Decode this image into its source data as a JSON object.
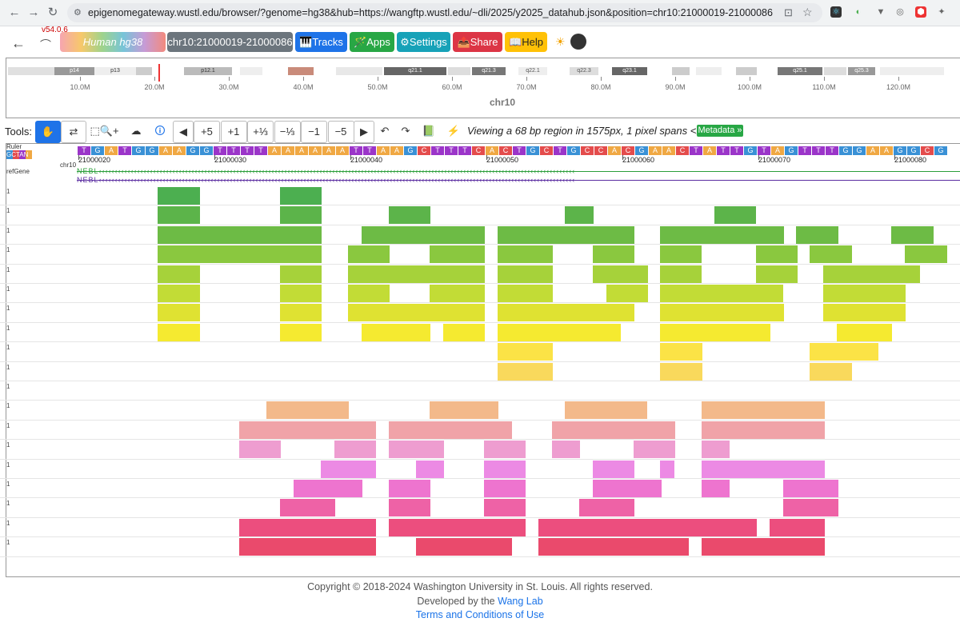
{
  "browser": {
    "url": "epigenomegateway.wustl.edu/browser/?genome=hg38&hub=https://wangftp.wustl.edu/~dli/2025/y2025_datahub.json&position=chr10:21000019-21000086"
  },
  "header": {
    "version": "v54.0.6",
    "genome_prefix": "Human",
    "genome_name": "hg38",
    "locus": "chr10:21000019-21000086",
    "tracks_label": "Tracks",
    "apps_label": "Apps",
    "settings_label": "Settings",
    "share_label": "Share",
    "help_label": "Help"
  },
  "ideogram": {
    "chromosome": "chr10",
    "bands": [
      "p14",
      "p13",
      "p12.1",
      "q21.1",
      "q21.3",
      "q22.1",
      "q22.3",
      "q23.1",
      "q25.1",
      "q25.3"
    ],
    "ticks": [
      "10.0M",
      "20.0M",
      "30.0M",
      "40.0M",
      "50.0M",
      "60.0M",
      "70.0M",
      "80.0M",
      "90.0M",
      "100.0M",
      "110.0M",
      "120.0M"
    ]
  },
  "tools": {
    "label": "Tools:",
    "buttons": [
      "+5",
      "+1",
      "+⅓",
      "−⅓",
      "−1",
      "−5"
    ],
    "viewing_text": "Viewing a 68 bp region in 1575px, 1 pixel spans <1 bp",
    "metadata_label": "Metadata »"
  },
  "tracks": {
    "ruler_label": "Ruler",
    "seq_label": "GCTAN",
    "chr_label": "chr10",
    "refgene_label": "refGene",
    "gene_name": "NEBL",
    "sequence": "TGATGGAAGGTTTTAAAAAATTAAGCTTTCACTGCTGCCACGAACTATTGTAGTTTGGAAGGCG",
    "coords": [
      "21000020",
      "21000030",
      "21000040",
      "21000050",
      "21000060",
      "21000070",
      "21000080"
    ],
    "row_value": "1"
  },
  "colors": {
    "A": "#f0a843",
    "T": "#9b35c9",
    "G": "#3a91d6",
    "C": "#e44c4c",
    "rows": [
      "#4caf50",
      "#5cb44a",
      "#6dbb45",
      "#8ac83f",
      "#a6d23a",
      "#c2dc36",
      "#dfe232",
      "#f5ea30",
      "#fbe346",
      "#f9d95c",
      "#f3b98a",
      "#f0a3a8",
      "#ee9dd0",
      "#ec8ae4",
      "#ee74cf",
      "#ee62a6",
      "#ec4e7e",
      "#ea4a6c"
    ]
  },
  "footer": {
    "copyright": "Copyright © 2018-2024 Washington University in St. Louis. All rights reserved.",
    "developed_prefix": "Developed by the",
    "lab_link": "Wang Lab",
    "terms_link": "Terms and Conditions of Use"
  }
}
